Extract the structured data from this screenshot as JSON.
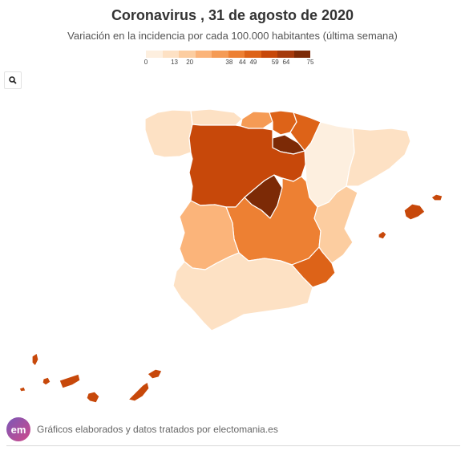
{
  "title": "Coronavirus , 31 de agosto de 2020",
  "subtitle": "Variación en la incidencia por cada 100.000 habitantes (última semana)",
  "legend": {
    "ticks": [
      "0",
      "13",
      "20",
      "38",
      "44",
      "49",
      "59",
      "64",
      "75"
    ],
    "tick_values": [
      0,
      13,
      20,
      38,
      44,
      49,
      59,
      64,
      75
    ],
    "min": 0,
    "max": 75,
    "colors": [
      "#fdefdf",
      "#fde1c4",
      "#fccda0",
      "#fbb47a",
      "#f59b55",
      "#ed8033",
      "#dd6318",
      "#c7480a",
      "#a53a0c",
      "#7c2a06"
    ]
  },
  "search": {
    "icon": "magnifier-icon"
  },
  "regions": [
    {
      "name": "Galicia",
      "level": 1
    },
    {
      "name": "Asturias",
      "level": 1
    },
    {
      "name": "Cantabria",
      "level": 4
    },
    {
      "name": "País Vasco",
      "level": 6
    },
    {
      "name": "Navarra",
      "level": 6
    },
    {
      "name": "La Rioja",
      "level": 9
    },
    {
      "name": "Aragón",
      "level": 0
    },
    {
      "name": "Cataluña",
      "level": 1
    },
    {
      "name": "Castilla y León",
      "level": 7
    },
    {
      "name": "Madrid",
      "level": 9
    },
    {
      "name": "Castilla-La Mancha",
      "level": 5
    },
    {
      "name": "Comunidad Valenciana",
      "level": 2
    },
    {
      "name": "Región de Murcia",
      "level": 6
    },
    {
      "name": "Extremadura",
      "level": 3
    },
    {
      "name": "Andalucía",
      "level": 1
    },
    {
      "name": "Baleares",
      "level": 7
    },
    {
      "name": "Canarias",
      "level": 7
    }
  ],
  "footer": {
    "logo": "em",
    "text": "Gráficos elaborados y datos tratados por electomania.es"
  }
}
